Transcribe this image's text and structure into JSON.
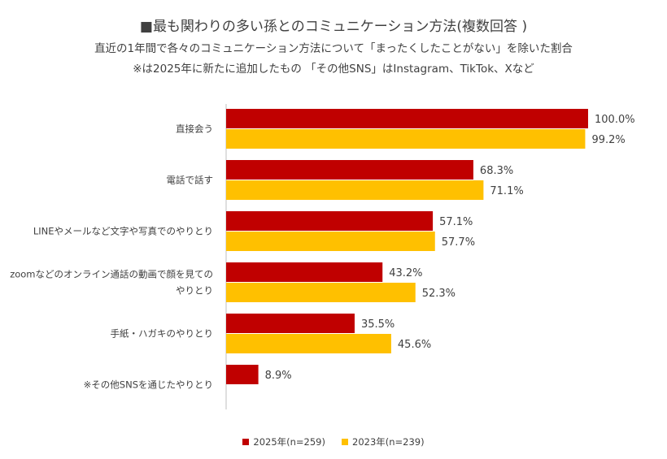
{
  "title_prefix": "■",
  "title": "最も関わりの多い孫とのコミュニケーション方法(複数回答 )",
  "subtitle_line1": "直近の1年間で各々のコミュニケーション方法について「まったくしたことがない」を除いた割合",
  "subtitle_line2": "※は2025年に新たに追加したもの 「その他SNS」はInstagram、TikTok、Xなど",
  "colors": {
    "series_2025": "#C00000",
    "series_2023": "#FFC000"
  },
  "chart_data": {
    "type": "bar",
    "orientation": "horizontal",
    "categories": [
      [
        "直接会う"
      ],
      [
        "電話で話す"
      ],
      [
        "LINEやメールなど文字や写真でのやりとり"
      ],
      [
        "zoomなどのオンライン通話の動画で顔を見ての",
        "やりとり"
      ],
      [
        "手紙・ハガキのやりとり"
      ],
      [
        "※その他SNSを通じたやりとり"
      ]
    ],
    "series": [
      {
        "name": "2025年(n=259)",
        "values": [
          100.0,
          68.3,
          57.1,
          43.2,
          35.5,
          8.9
        ],
        "labels": [
          "100.0%",
          "68.3%",
          "57.1%",
          "43.2%",
          "35.5%",
          "8.9%"
        ]
      },
      {
        "name": "2023年(n=239)",
        "values": [
          99.2,
          71.1,
          57.7,
          52.3,
          45.6,
          null
        ],
        "labels": [
          "99.2%",
          "71.1%",
          "57.7%",
          "52.3%",
          "45.6%",
          ""
        ]
      }
    ],
    "xlim": [
      0,
      100
    ],
    "grid": false,
    "legend_position": "bottom"
  }
}
